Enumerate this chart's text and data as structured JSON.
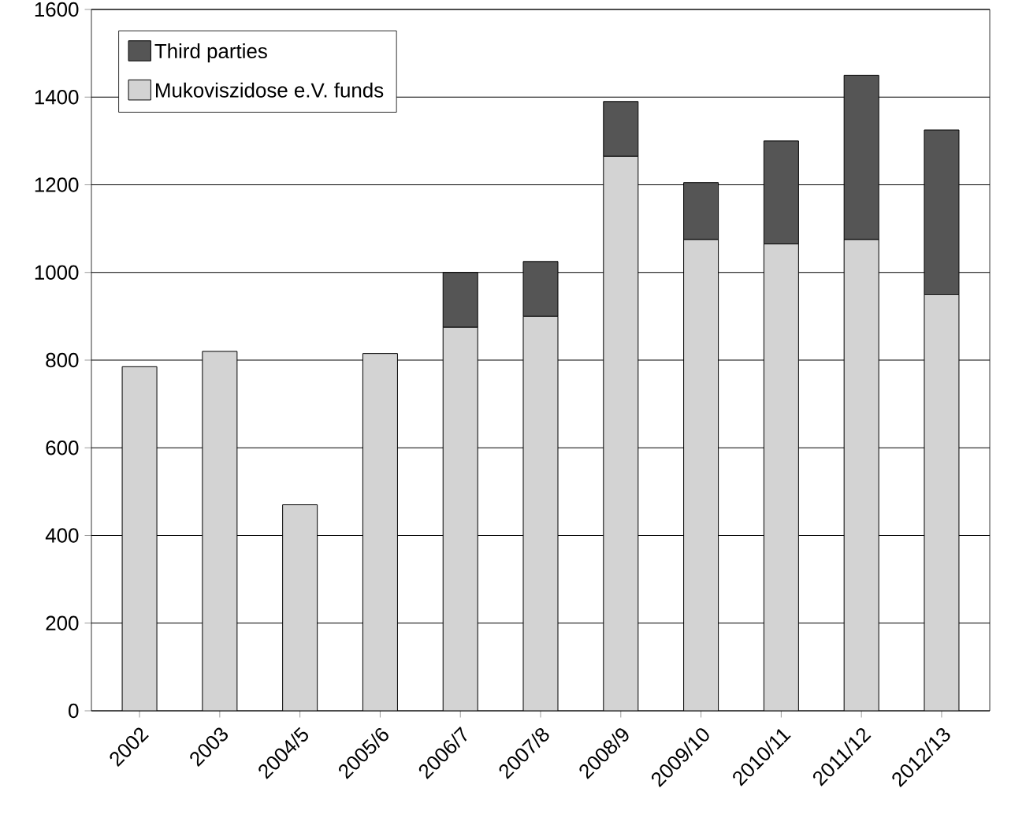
{
  "chart_data": {
    "type": "bar",
    "stacked": true,
    "categories": [
      "2002",
      "2003",
      "2004/5",
      "2005/6",
      "2006/7",
      "2007/8",
      "2008/9",
      "2009/10",
      "2010/11",
      "2011/12",
      "2012/13"
    ],
    "series": [
      {
        "name": "Mukoviszidose e.V. funds",
        "color": "#d3d3d3",
        "values": [
          785,
          820,
          470,
          815,
          875,
          900,
          1265,
          1075,
          1065,
          1075,
          950
        ]
      },
      {
        "name": "Third parties",
        "color": "#555555",
        "values": [
          null,
          null,
          null,
          null,
          125,
          125,
          125,
          130,
          235,
          375,
          375
        ]
      }
    ],
    "ylim": [
      0,
      1600
    ],
    "yticks": [
      0,
      200,
      400,
      600,
      800,
      1000,
      1200,
      1400,
      1600
    ],
    "grid": "y",
    "legend": "top left"
  }
}
